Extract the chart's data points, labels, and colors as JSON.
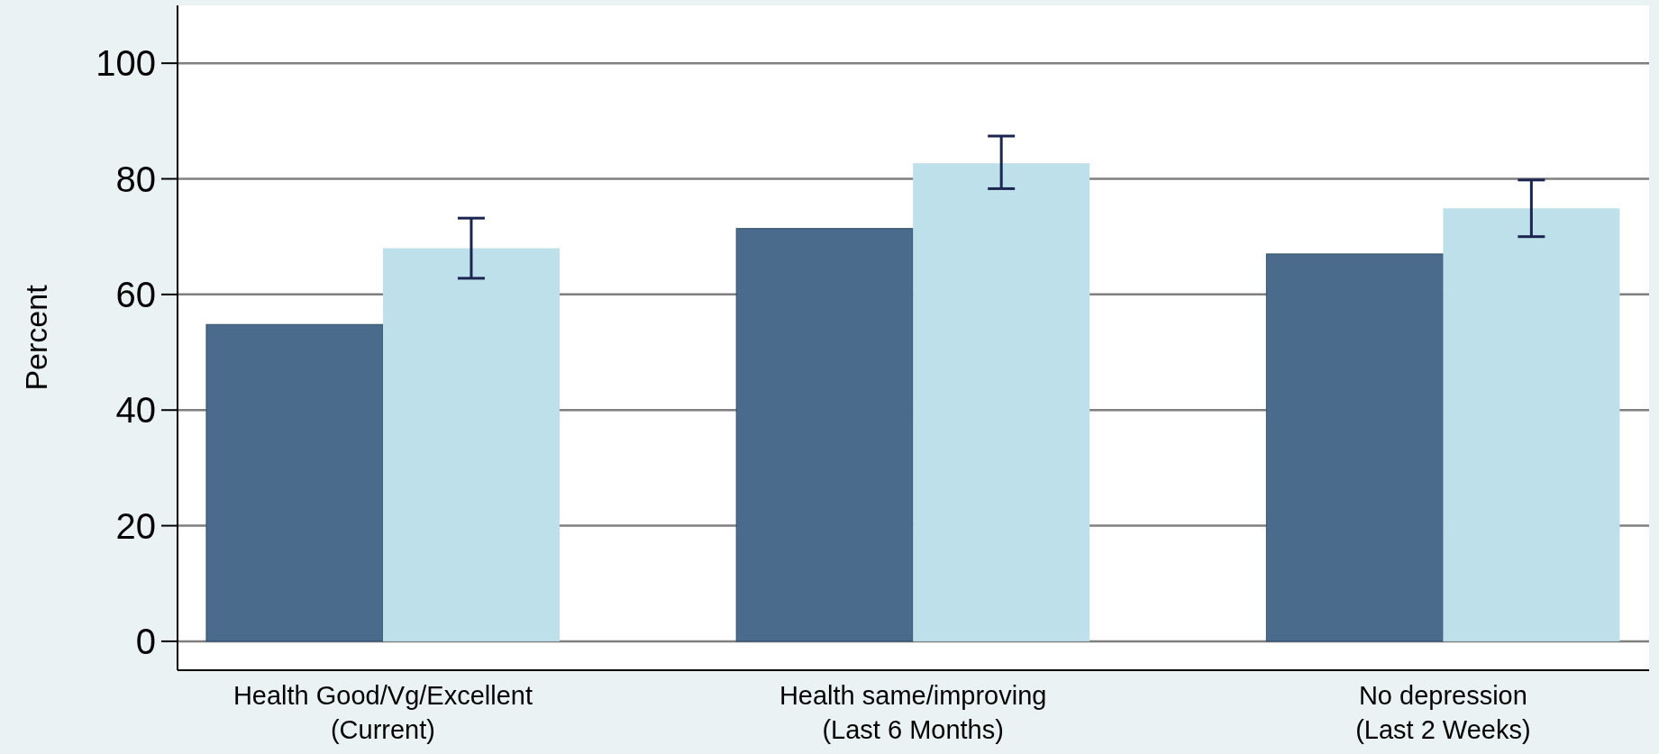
{
  "chart_data": {
    "type": "bar",
    "ylabel": "Percent",
    "categories": [
      "Health Good/Vg/Excellent\n(Current)",
      "Health same/improving\n(Last 6 Months)",
      "No depression\n(Last 2 Weeks)"
    ],
    "series": [
      {
        "color": "#4a6b8c",
        "values": [
          54.8,
          71.4,
          67.0
        ]
      },
      {
        "color": "#bde0ea",
        "values": [
          68.0,
          82.7,
          74.9
        ],
        "errors": [
          [
            62.8,
            73.2
          ],
          [
            78.3,
            87.4
          ],
          [
            70.0,
            79.8
          ]
        ]
      }
    ],
    "ylim": [
      -5,
      110
    ],
    "yticks": [
      0,
      20,
      40,
      60,
      80,
      100
    ],
    "grid": "y"
  }
}
